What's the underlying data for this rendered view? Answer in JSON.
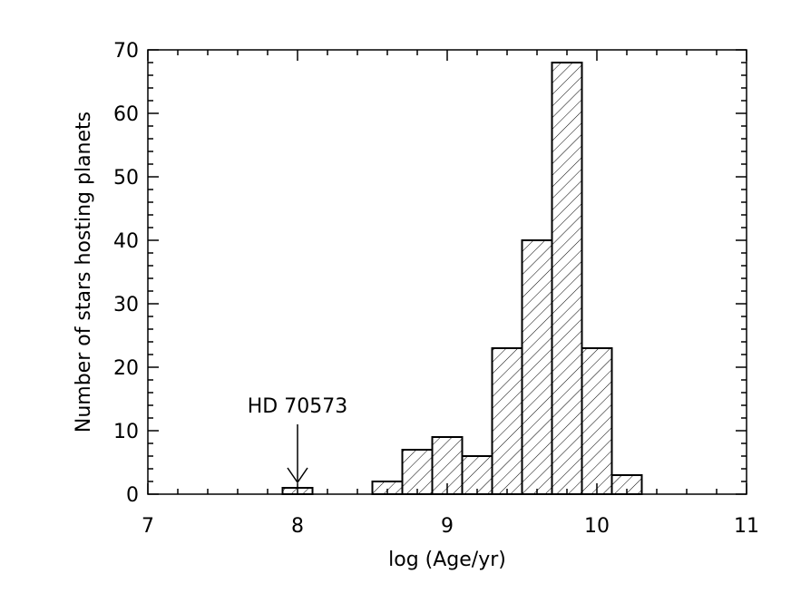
{
  "chart_data": {
    "type": "bar",
    "subtype": "histogram",
    "fill_pattern": "diagonal-hatch",
    "bins": [
      {
        "x0": 7.9,
        "x1": 8.1,
        "count": 1
      },
      {
        "x0": 8.5,
        "x1": 8.7,
        "count": 2
      },
      {
        "x0": 8.7,
        "x1": 8.9,
        "count": 7
      },
      {
        "x0": 8.9,
        "x1": 9.1,
        "count": 9
      },
      {
        "x0": 9.1,
        "x1": 9.3,
        "count": 6
      },
      {
        "x0": 9.3,
        "x1": 9.5,
        "count": 23
      },
      {
        "x0": 9.5,
        "x1": 9.7,
        "count": 40
      },
      {
        "x0": 9.7,
        "x1": 9.9,
        "count": 68
      },
      {
        "x0": 9.9,
        "x1": 10.1,
        "count": 23
      },
      {
        "x0": 10.1,
        "x1": 10.3,
        "count": 3
      }
    ],
    "xlim": [
      7,
      11
    ],
    "ylim": [
      0,
      70
    ],
    "xticks": [
      7,
      8,
      9,
      10,
      11
    ],
    "xtick_labels": [
      "7",
      "8",
      "9",
      "10",
      "11"
    ],
    "yticks": [
      0,
      10,
      20,
      30,
      40,
      50,
      60,
      70
    ],
    "ytick_labels": [
      "0",
      "10",
      "20",
      "30",
      "40",
      "50",
      "60",
      "70"
    ],
    "xlabel": "log (Age/yr)",
    "ylabel": "Number of stars hosting planets",
    "grid": false,
    "annotations": [
      {
        "text": "HD 70573",
        "x": 8.0,
        "arrow_to_count": 1
      }
    ]
  }
}
